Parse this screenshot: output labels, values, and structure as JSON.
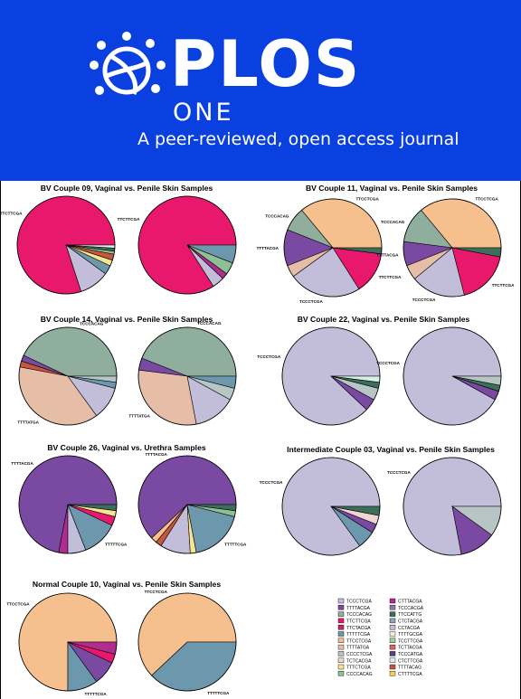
{
  "header": {
    "brand": "PLOS",
    "brand_sub": "ONE",
    "tagline": "A peer-reviewed, open access journal"
  },
  "colors": {
    "banner": "#0a3fe0",
    "TCCCTCGA": "#c2bed9",
    "TTTTACGA": "#7a4aa3",
    "TCCCACAG": "#8fae9e",
    "TTCTTCGA": "#e8186c",
    "TTCTACGA": "#c8245e",
    "TTTTTCGA": "#6c97ad",
    "TTCCTCGA": "#f6c08e",
    "TTTTATGA": "#e6bda6",
    "CCCCTCGA": "#b7c6c4",
    "TCTCACGA": "#f0d5d0",
    "TTTCTCGA": "#f6e590",
    "CCCCACAG": "#8fbf95",
    "CTTTACGA": "#b02c8e",
    "TCCCACGA": "#8777b5",
    "TTCCATTG": "#3d6e5a",
    "CTCTACGA": "#8aa8b3",
    "CCTACGA": "#d3b5cf",
    "TTTTGCGA": "#f3f0d0",
    "TCCTTCGA": "#9bd590",
    "TCTTACGA": "#e55b66",
    "TCCCATGA": "#5e3d8c",
    "CTCTTCGA": "#d6f0e6",
    "TTTTACAG": "#c6563c",
    "CTTTTCGA": "#f6d24a"
  },
  "chart_data": [
    {
      "type": "pie",
      "title": "BV Couple 09, Vaginal vs. Penile Skin Samples",
      "pies": [
        {
          "slices": [
            {
              "label": "TTCTTCGA",
              "value": 0.8
            },
            {
              "label": "TCCCTCGA",
              "value": 0.1
            },
            {
              "label": "TTTTTCGA",
              "value": 0.03
            },
            {
              "label": "TTTCTCGA",
              "value": 0.02
            },
            {
              "label": "TTTTACAG",
              "value": 0.02
            },
            {
              "label": "CCCCACAG",
              "value": 0.01
            },
            {
              "label": "TTCCATTG",
              "value": 0.01
            },
            {
              "label": "CTCTTCGA",
              "value": 0.01
            }
          ],
          "labels": [
            "TTCTTCGA"
          ]
        },
        {
          "slices": [
            {
              "label": "TTCTTCGA",
              "value": 0.84
            },
            {
              "label": "TCCCTCGA",
              "value": 0.04
            },
            {
              "label": "CTTTACGA",
              "value": 0.02
            },
            {
              "label": "CCCCACAG",
              "value": 0.04
            },
            {
              "label": "TTTTTCGA",
              "value": 0.06
            }
          ],
          "labels": [
            "TTCTTCGA"
          ]
        }
      ]
    },
    {
      "type": "pie",
      "title": "BV Couple 11, Vaginal vs. Penile Skin Samples",
      "pies": [
        {
          "slices": [
            {
              "label": "TTCCTCGA",
              "value": 0.36
            },
            {
              "label": "TCCCACAG",
              "value": 0.08
            },
            {
              "label": "TTTTACGA",
              "value": 0.12
            },
            {
              "label": "TTTTATGA",
              "value": 0.04
            },
            {
              "label": "TCCCTCGA",
              "value": 0.24
            },
            {
              "label": "TTCTTCGA",
              "value": 0.14
            },
            {
              "label": "TTCCATTG",
              "value": 0.02
            }
          ],
          "labels": [
            "TTCCTCGA",
            "TCCCACAG",
            "TTTTACGA",
            "TCCCTCGA",
            "TTCTTCGA"
          ]
        },
        {
          "slices": [
            {
              "label": "TTCCTCGA",
              "value": 0.36
            },
            {
              "label": "TCCCACAG",
              "value": 0.12
            },
            {
              "label": "TTTTACGA",
              "value": 0.08
            },
            {
              "label": "TTTTATGA",
              "value": 0.05
            },
            {
              "label": "TCCCTCGA",
              "value": 0.18
            },
            {
              "label": "TTCTTCGA",
              "value": 0.18
            },
            {
              "label": "TTCCATTG",
              "value": 0.03
            }
          ],
          "labels": [
            "TTCCTCGA",
            "TCCCACAG",
            "TTTTACGA",
            "TCCCTCGA",
            "TTCTTCGA"
          ]
        }
      ]
    },
    {
      "type": "pie",
      "title": "BV Couple 14, Vaginal vs. Penile Skin Samples",
      "pies": [
        {
          "slices": [
            {
              "label": "TCCCACAG",
              "value": 0.43
            },
            {
              "label": "TTTTACGA",
              "value": 0.02
            },
            {
              "label": "TTTTACAG",
              "value": 0.02
            },
            {
              "label": "TTTTATGA",
              "value": 0.38
            },
            {
              "label": "TCCCTCGA",
              "value": 0.11
            },
            {
              "label": "TTTTTCGA",
              "value": 0.02
            },
            {
              "label": "CCCCTCGA",
              "value": 0.02
            }
          ],
          "labels": [
            "TCCCACAG",
            "TTTTATGA"
          ]
        },
        {
          "slices": [
            {
              "label": "TCCCACAG",
              "value": 0.44
            },
            {
              "label": "TTTTACGA",
              "value": 0.04
            },
            {
              "label": "TTTTATGA",
              "value": 0.3
            },
            {
              "label": "TCCCTCGA",
              "value": 0.14
            },
            {
              "label": "CCCCTCGA",
              "value": 0.04
            },
            {
              "label": "TTTTTCGA",
              "value": 0.04
            }
          ],
          "labels": [
            "TCCCACAG",
            "TTTTATGA"
          ]
        }
      ]
    },
    {
      "type": "pie",
      "title": "BV Couple 22, Vaginal vs. Penile Skin Samples",
      "pies": [
        {
          "slices": [
            {
              "label": "TCCCTCGA",
              "value": 0.88
            },
            {
              "label": "TTTTACGA",
              "value": 0.04
            },
            {
              "label": "CCCCTCGA",
              "value": 0.04
            },
            {
              "label": "TTCCATTG",
              "value": 0.02
            },
            {
              "label": "CTCTTCGA",
              "value": 0.02
            }
          ],
          "labels": [
            "TCCCTCGA"
          ]
        },
        {
          "slices": [
            {
              "label": "TCCCTCGA",
              "value": 0.92
            },
            {
              "label": "TTTTACGA",
              "value": 0.03
            },
            {
              "label": "TTCCATTG",
              "value": 0.02
            },
            {
              "label": "CCCCTCGA",
              "value": 0.03
            }
          ],
          "labels": [
            "TCCCTCGA"
          ]
        }
      ]
    },
    {
      "type": "pie",
      "title": "BV Couple 26, Vaginal vs. Urethra Samples",
      "pies": [
        {
          "slices": [
            {
              "label": "TTTTACGA",
              "value": 0.72
            },
            {
              "label": "CTTTACGA",
              "value": 0.03
            },
            {
              "label": "TCCCTCGA",
              "value": 0.06
            },
            {
              "label": "TTTTTCGA",
              "value": 0.12
            },
            {
              "label": "TTCTTCGA",
              "value": 0.03
            },
            {
              "label": "TTTCTCGA",
              "value": 0.02
            },
            {
              "label": "TTCCATTG",
              "value": 0.02
            }
          ],
          "labels": [
            "TTTTACGA",
            "TTTTTCGA"
          ]
        },
        {
          "slices": [
            {
              "label": "TTTTACGA",
              "value": 0.62
            },
            {
              "label": "TTCCTCGA",
              "value": 0.02
            },
            {
              "label": "TTTTACAG",
              "value": 0.02
            },
            {
              "label": "TCCCTCGA",
              "value": 0.1
            },
            {
              "label": "TTTCTCGA",
              "value": 0.02
            },
            {
              "label": "TTTTTCGA",
              "value": 0.18
            },
            {
              "label": "CCCCACAG",
              "value": 0.02
            },
            {
              "label": "TTCCATTG",
              "value": 0.02
            }
          ],
          "labels": [
            "TTTTACGA",
            "TTTTTCGA"
          ]
        }
      ]
    },
    {
      "type": "pie",
      "title": "Intermediate Couple 03, Vaginal vs. Penile Skin Samples",
      "pies": [
        {
          "slices": [
            {
              "label": "TCCCTCGA",
              "value": 0.85
            },
            {
              "label": "TTTTTCGA",
              "value": 0.06
            },
            {
              "label": "TTTTACGA",
              "value": 0.03
            },
            {
              "label": "TCTCACGA",
              "value": 0.03
            },
            {
              "label": "TTCCATTG",
              "value": 0.03
            }
          ],
          "labels": [
            "TCCCTCGA"
          ]
        },
        {
          "slices": [
            {
              "label": "TCCCTCGA",
              "value": 0.78
            },
            {
              "label": "TTTTACGA",
              "value": 0.12
            },
            {
              "label": "CCCCTCGA",
              "value": 0.1
            }
          ],
          "labels": [
            "TCCCTCGA"
          ]
        }
      ]
    },
    {
      "type": "pie",
      "title": "Normal Couple 10, Vaginal vs. Penile Skin Samples",
      "pies": [
        {
          "slices": [
            {
              "label": "TTCCTCGA",
              "value": 0.75
            },
            {
              "label": "TTTTTCGA",
              "value": 0.1
            },
            {
              "label": "TTTTACGA",
              "value": 0.08
            },
            {
              "label": "TTCTTCGA",
              "value": 0.03
            },
            {
              "label": "CTTTACGA",
              "value": 0.04
            }
          ],
          "labels": [
            "TTCCTCGA",
            "TTTTTCGA"
          ]
        },
        {
          "slices": [
            {
              "label": "TTCCTCGA",
              "value": 0.62
            },
            {
              "label": "TTTTTCGA",
              "value": 0.38
            }
          ],
          "labels": [
            "TTCCTCGA",
            "TTTTTCGA"
          ]
        }
      ]
    }
  ],
  "legend": [
    [
      "TCCCTCGA",
      "CTTTACGA"
    ],
    [
      "TTTTACGA",
      "TCCCACGA"
    ],
    [
      "TCCCACAG",
      "TTCCATTG"
    ],
    [
      "TTCTTCGA",
      "CTCTACGA"
    ],
    [
      "TTCTACGA",
      "CCTACGA"
    ],
    [
      "TTTTTCGA",
      "TTTTGCGA"
    ],
    [
      "TTCCTCGA",
      "TCCTTCGA"
    ],
    [
      "TTTTATGA",
      "TCTTACGA"
    ],
    [
      "CCCCTCGA",
      "TCCCATGA"
    ],
    [
      "TCTCACGA",
      "CTCTTCGA"
    ],
    [
      "TTTCTCGA",
      "TTTTACAG"
    ],
    [
      "CCCCACAG",
      "CTTTTCGA"
    ]
  ]
}
